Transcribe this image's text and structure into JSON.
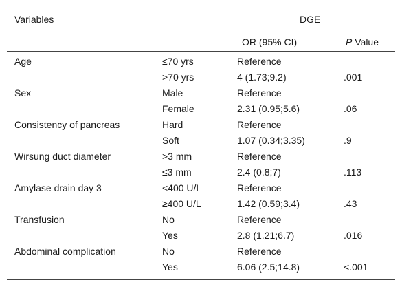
{
  "header": {
    "variables": "Variables",
    "group": "DGE",
    "or_label": "OR (95% CI)",
    "p_italic": "P",
    "p_rest": " Value"
  },
  "rows": [
    {
      "variable": "Age",
      "level": "≤70 yrs",
      "or": "Reference",
      "p": ""
    },
    {
      "variable": "",
      "level": ">70 yrs",
      "or": "4 (1.73;9.2)",
      "p": ".001"
    },
    {
      "variable": "Sex",
      "level": "Male",
      "or": "Reference",
      "p": ""
    },
    {
      "variable": "",
      "level": "Female",
      "or": "2.31 (0.95;5.6)",
      "p": ".06"
    },
    {
      "variable": "Consistency of pancreas",
      "level": "Hard",
      "or": "Reference",
      "p": ""
    },
    {
      "variable": "",
      "level": "Soft",
      "or": "1.07 (0.34;3.35)",
      "p": ".9"
    },
    {
      "variable": "Wirsung duct diameter",
      "level": ">3 mm",
      "or": "Reference",
      "p": ""
    },
    {
      "variable": "",
      "level": "≤3 mm",
      "or": "2.4 (0.8;7)",
      "p": ".113"
    },
    {
      "variable": "Amylase drain day 3",
      "level": "<400 U/L",
      "or": "Reference",
      "p": ""
    },
    {
      "variable": "",
      "level": "≥400 U/L",
      "or": "1.42 (0.59;3.4)",
      "p": ".43"
    },
    {
      "variable": "Transfusion",
      "level": "No",
      "or": "Reference",
      "p": ""
    },
    {
      "variable": "",
      "level": "Yes",
      "or": "2.8 (1.21;6.7)",
      "p": ".016"
    },
    {
      "variable": "Abdominal complication",
      "level": "No",
      "or": "Reference",
      "p": ""
    },
    {
      "variable": "",
      "level": "Yes",
      "or": "6.06 (2.5;14.8)",
      "p": "<.001"
    }
  ]
}
